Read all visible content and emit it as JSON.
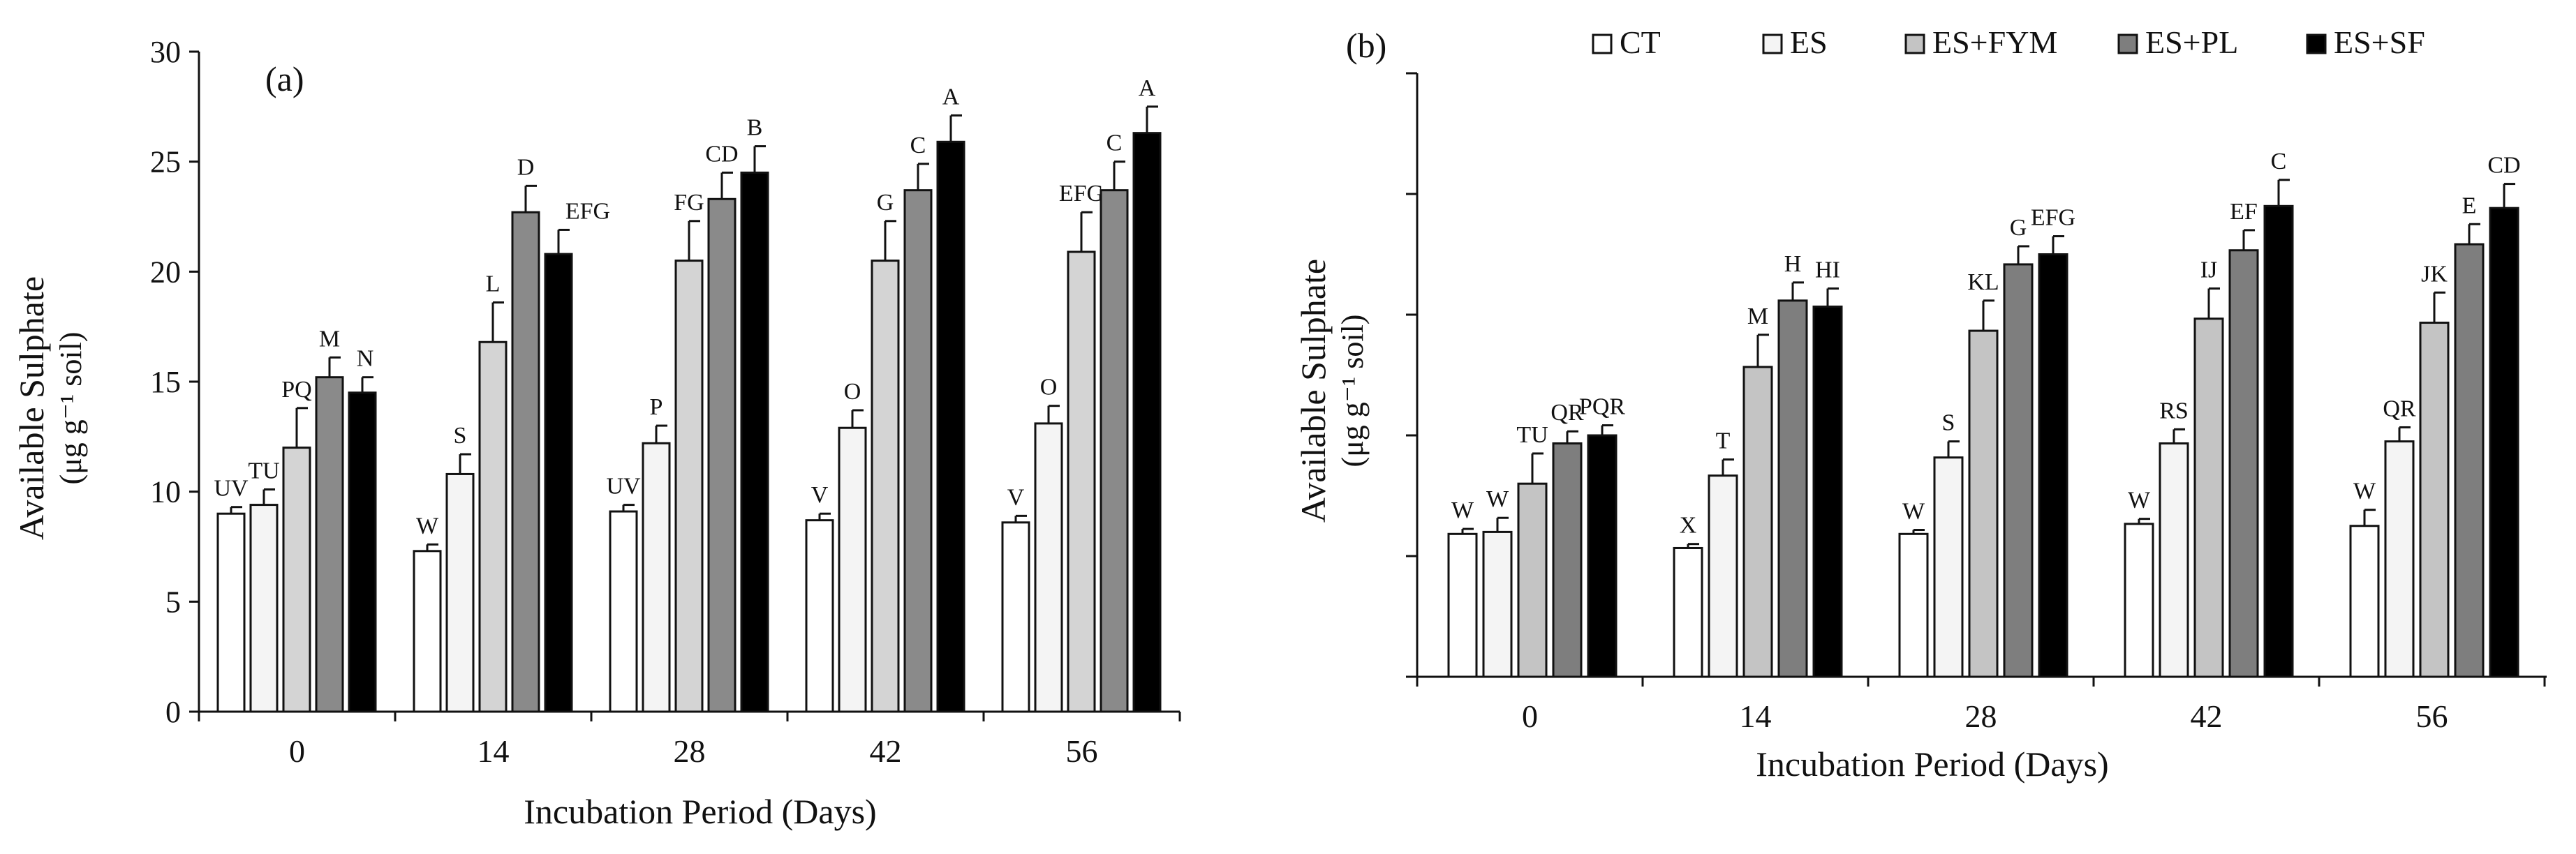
{
  "chart_data": [
    {
      "type": "bar",
      "panel_label": "(a)",
      "title": "",
      "xlabel": "Incubation Period (Days)",
      "ylabel": "Available Sulphate",
      "ylabel_units": "(μg g⁻¹ soil)",
      "ylim": [
        0,
        30
      ],
      "yticks": [
        "0",
        "5",
        "10",
        "15",
        "20",
        "25",
        "30"
      ],
      "categories": [
        "0",
        "14",
        "28",
        "42",
        "56"
      ],
      "series": [
        {
          "name": "CT",
          "color": "#ffffff",
          "values": [
            9.0,
            7.3,
            9.1,
            8.7,
            8.6
          ],
          "errors": [
            0.3,
            0.3,
            0.3,
            0.3,
            0.3
          ],
          "labels": [
            "UV",
            "W",
            "UV",
            "V",
            "V"
          ]
        },
        {
          "name": "ES",
          "color": "#f4f4f4",
          "values": [
            9.4,
            10.8,
            12.2,
            12.9,
            13.1
          ],
          "errors": [
            0.7,
            0.9,
            0.8,
            0.8,
            0.8
          ],
          "labels": [
            "TU",
            "S",
            "P",
            "O",
            "O"
          ]
        },
        {
          "name": "ES+FYM",
          "color": "#d4d4d4",
          "values": [
            12.0,
            16.8,
            20.5,
            20.5,
            20.9
          ],
          "errors": [
            1.8,
            1.8,
            1.8,
            1.8,
            1.8
          ],
          "labels": [
            "PQ",
            "L",
            "FG",
            "G",
            "EFG"
          ]
        },
        {
          "name": "ES+PL",
          "color": "#8a8a8a",
          "values": [
            15.2,
            22.7,
            23.3,
            23.7,
            23.7
          ],
          "errors": [
            0.9,
            1.2,
            1.2,
            1.2,
            1.3
          ],
          "labels": [
            "M",
            "D",
            "CD",
            "C",
            "C"
          ]
        },
        {
          "name": "ES+SF",
          "color": "#000000",
          "values": [
            14.5,
            20.8,
            24.5,
            25.9,
            26.3
          ],
          "errors": [
            0.7,
            1.1,
            1.2,
            1.2,
            1.2
          ],
          "labels": [
            "N",
            "EFG",
            "B",
            "A",
            "A"
          ]
        }
      ]
    },
    {
      "type": "bar",
      "panel_label": "(b)",
      "title": "",
      "xlabel": "Incubation Period (Days)",
      "ylabel": "Available Sulphate",
      "ylabel_units": "(μg g⁻¹ soil)",
      "ylim": [
        0,
        30
      ],
      "yticks": [
        "",
        "",
        "",
        "",
        "",
        ""
      ],
      "categories": [
        "0",
        "14",
        "28",
        "42",
        "56"
      ],
      "legend": {
        "position": "top",
        "entries": [
          "CT",
          "ES",
          "ES+FYM",
          "ES+PL",
          "ES+SF"
        ]
      },
      "series": [
        {
          "name": "CT",
          "color": "#ffffff",
          "values": [
            7.1,
            6.4,
            7.1,
            7.6,
            7.5
          ],
          "errors": [
            0.25,
            0.2,
            0.2,
            0.25,
            0.8
          ],
          "labels": [
            "W",
            "X",
            "W",
            "W",
            "W"
          ]
        },
        {
          "name": "ES",
          "color": "#f4f4f4",
          "values": [
            7.2,
            10.0,
            10.9,
            11.6,
            11.7
          ],
          "errors": [
            0.7,
            0.8,
            0.8,
            0.7,
            0.7
          ],
          "labels": [
            "W",
            "T",
            "S",
            "RS",
            "QR"
          ]
        },
        {
          "name": "ES+FYM",
          "color": "#c4c4c4",
          "values": [
            9.6,
            15.4,
            17.2,
            17.8,
            17.6
          ],
          "errors": [
            1.5,
            1.6,
            1.5,
            1.5,
            1.5
          ],
          "labels": [
            "TU",
            "M",
            "KL",
            "IJ",
            "JK"
          ]
        },
        {
          "name": "ES+PL",
          "color": "#7e7e7e",
          "values": [
            11.6,
            18.7,
            20.5,
            21.2,
            21.5
          ],
          "errors": [
            0.6,
            0.9,
            0.9,
            1.0,
            1.0
          ],
          "labels": [
            "QR",
            "H",
            "G",
            "EF",
            "E"
          ]
        },
        {
          "name": "ES+SF",
          "color": "#000000",
          "values": [
            12.0,
            18.4,
            21.0,
            23.4,
            23.3
          ],
          "errors": [
            0.5,
            0.9,
            0.9,
            1.3,
            1.2
          ],
          "labels": [
            "PQR",
            "HI",
            "EFG",
            "C",
            "CD"
          ]
        }
      ]
    }
  ]
}
